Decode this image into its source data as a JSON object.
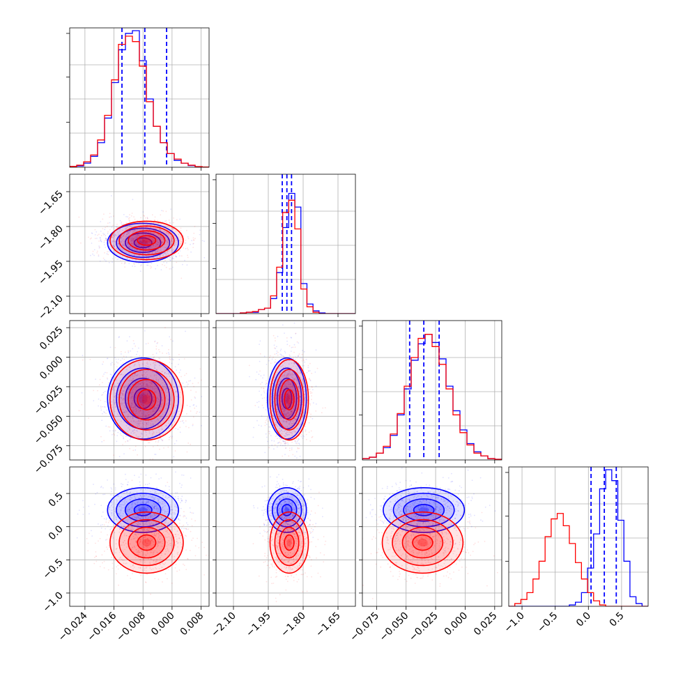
{
  "colors": {
    "series_a": "#0000ff",
    "series_b": "#ff0000"
  },
  "chart_data": {
    "type": "corner",
    "n_params": 4,
    "grid": true,
    "series": [
      {
        "color": "#0000ff",
        "hist_values": [
          [
            0.005,
            0.01,
            0.03,
            0.08,
            0.18,
            0.36,
            0.62,
            0.86,
            0.98,
            1.0,
            0.78,
            0.5,
            0.3,
            0.18,
            0.1,
            0.05,
            0.03,
            0.012,
            0.004,
            0.002
          ],
          [
            0.0,
            0.0,
            0.0,
            0.0,
            0.005,
            0.01,
            0.01,
            0.03,
            0.04,
            0.11,
            0.3,
            0.63,
            0.88,
            0.78,
            0.22,
            0.07,
            0.02,
            0.005,
            0.0,
            0.0,
            0.0,
            0.0,
            0.0
          ],
          [
            0.01,
            0.02,
            0.05,
            0.09,
            0.18,
            0.33,
            0.52,
            0.73,
            0.85,
            0.92,
            0.86,
            0.74,
            0.54,
            0.36,
            0.22,
            0.12,
            0.06,
            0.03,
            0.01,
            0.005
          ],
          [
            0.0,
            0.0,
            0.0,
            0.0,
            0.0,
            0.0,
            0.0,
            0.0,
            0.0,
            0.0,
            0.01,
            0.03,
            0.1,
            0.28,
            0.53,
            0.86,
            1.0,
            0.92,
            0.63,
            0.33,
            0.07,
            0.02,
            0.0
          ]
        ],
        "quantiles": [
          [
            -0.0138,
            -0.0075,
            -0.0015
          ],
          [
            -1.89,
            -1.87,
            -1.85
          ],
          [
            -0.047,
            -0.035,
            -0.022
          ],
          [
            0.04,
            0.24,
            0.42
          ]
        ],
        "centers": [
          -0.008,
          -1.87,
          -0.035,
          0.25
        ]
      },
      {
        "color": "#ff0000",
        "hist_values": [
          [
            0.006,
            0.015,
            0.04,
            0.09,
            0.2,
            0.38,
            0.64,
            0.9,
            0.96,
            0.92,
            0.74,
            0.48,
            0.3,
            0.18,
            0.1,
            0.06,
            0.03,
            0.015,
            0.005,
            0.002
          ],
          [
            0.0,
            0.0,
            0.0,
            0.0,
            0.005,
            0.01,
            0.015,
            0.03,
            0.04,
            0.13,
            0.34,
            0.74,
            0.83,
            0.62,
            0.18,
            0.05,
            0.01,
            0.0,
            0.0,
            0.0,
            0.0,
            0.0,
            0.0
          ],
          [
            0.01,
            0.02,
            0.05,
            0.1,
            0.19,
            0.34,
            0.54,
            0.75,
            0.89,
            0.92,
            0.83,
            0.7,
            0.52,
            0.33,
            0.2,
            0.11,
            0.05,
            0.03,
            0.01,
            0.005
          ],
          [
            0.0,
            0.02,
            0.05,
            0.1,
            0.2,
            0.33,
            0.51,
            0.64,
            0.68,
            0.59,
            0.46,
            0.32,
            0.2,
            0.1,
            0.04,
            0.01,
            0.0,
            0.0,
            0.0,
            0.0,
            0.0,
            0.0,
            0.0
          ]
        ],
        "centers": [
          -0.007,
          -1.86,
          -0.036,
          -0.24
        ]
      }
    ],
    "params": [
      {
        "range": [
          -0.0282,
          0.0102
        ],
        "ticks": [
          "−0.024",
          "−0.016",
          "−0.008",
          "0.000",
          "0.008"
        ],
        "tick_values": [
          -0.024,
          -0.016,
          -0.008,
          0.0,
          0.008
        ]
      },
      {
        "range": [
          -2.175,
          -1.575
        ],
        "ticks": [
          "−2.10",
          "−1.95",
          "−1.80",
          "−1.65"
        ],
        "tick_values": [
          -2.1,
          -1.95,
          -1.8,
          -1.65
        ]
      },
      {
        "range": [
          -0.087,
          0.031
        ],
        "x_ticks": [
          "−0.075",
          "−0.050",
          "−0.025",
          "0.000",
          "0.025"
        ],
        "x_tick_values": [
          -0.075,
          -0.05,
          -0.025,
          0.0,
          0.025
        ],
        "y_ticks": [
          "0.025",
          "0.000",
          "−0.025",
          "−0.050",
          "−0.075"
        ],
        "y_tick_values": [
          0.025,
          0.0,
          -0.025,
          -0.05,
          -0.075
        ]
      },
      {
        "range": [
          -1.2,
          0.9
        ],
        "x_ticks": [
          "−1.0",
          "−0.5",
          "0.0",
          "0.5"
        ],
        "x_tick_values": [
          -1.0,
          -0.5,
          0.0,
          0.5
        ],
        "y_ticks": [
          "0.5",
          "0.0",
          "−0.5",
          "−1.0"
        ],
        "y_tick_values": [
          0.5,
          0.0,
          -0.5,
          -1.0
        ]
      }
    ]
  }
}
